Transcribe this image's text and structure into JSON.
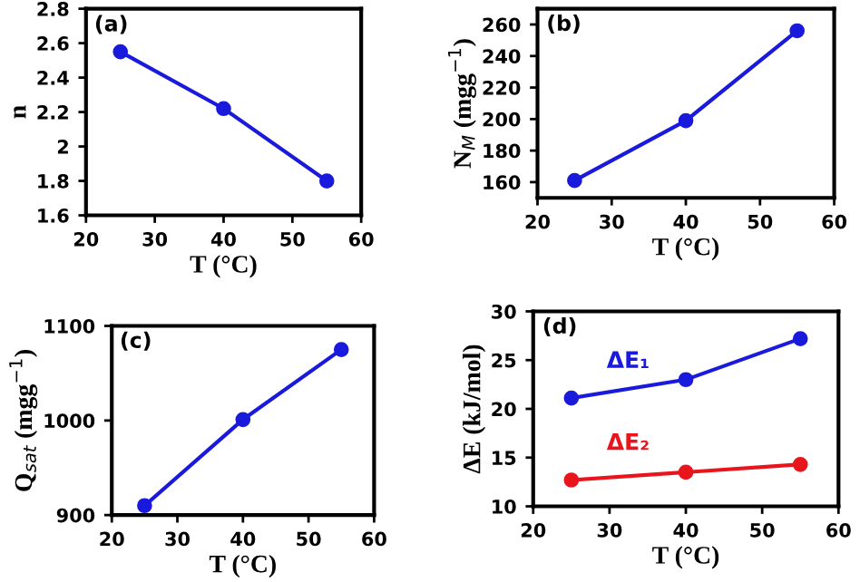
{
  "chart_data": [
    {
      "type": "line",
      "xlabel": "T (°C)",
      "ylabel": "n",
      "annotations": [
        "(a)"
      ],
      "x": [
        25,
        40,
        55
      ],
      "marker": "circle",
      "line_style": "solid",
      "grid": false,
      "legend": false,
      "series": [
        {
          "color": "#1a1adc",
          "values": [
            2.55,
            2.22,
            1.8
          ]
        }
      ],
      "xlim": [
        20,
        60
      ],
      "xticks": [
        20,
        30,
        40,
        50,
        60
      ],
      "ylim": [
        1.6,
        2.8
      ],
      "yticks": [
        1.6,
        1.8,
        {
          "value": 2.0,
          "label": "2"
        },
        2.2,
        2.4,
        2.6,
        2.8
      ]
    },
    {
      "type": "line",
      "xlabel": "T (°C)",
      "ylabel": "N$_{M}$ (mgg$^{−1}$)",
      "annotations": [
        "(b)"
      ],
      "x": [
        25,
        40,
        55
      ],
      "marker": "circle",
      "line_style": "solid",
      "grid": false,
      "legend": false,
      "series": [
        {
          "color": "#1a1adc",
          "values": [
            161,
            199,
            256
          ]
        }
      ],
      "xlim": [
        20,
        60
      ],
      "xticks": [
        20,
        30,
        40,
        50,
        60
      ],
      "ylim": [
        150,
        270
      ],
      "yticks": [
        160,
        180,
        200,
        220,
        240,
        260
      ]
    },
    {
      "type": "line",
      "xlabel": "T (°C)",
      "ylabel": "Q$_{sat}$ (mgg$^{−1}$)",
      "annotations": [
        "(c)"
      ],
      "x": [
        25,
        40,
        55
      ],
      "marker": "circle",
      "line_style": "solid",
      "grid": false,
      "legend": false,
      "series": [
        {
          "color": "#1a1adc",
          "values": [
            910,
            1001,
            1075
          ]
        }
      ],
      "xlim": [
        20,
        60
      ],
      "xticks": [
        20,
        30,
        40,
        50,
        60
      ],
      "ylim": [
        900,
        1100
      ],
      "yticks": [
        900,
        1000,
        1100
      ]
    },
    {
      "type": "line",
      "xlabel": "T (°C)",
      "ylabel": "ΔE (kJ/mol)",
      "annotations": [
        "(d)"
      ],
      "x": [
        25,
        40,
        55
      ],
      "marker": "circle",
      "line_style": "solid",
      "grid": false,
      "legend": false,
      "series": [
        {
          "name": "ΔE₁",
          "color": "#1a1adc",
          "values": [
            21.1,
            23.0,
            27.2
          ]
        },
        {
          "name": "ΔE₂",
          "color": "#e8161c",
          "values": [
            12.7,
            13.5,
            14.3
          ]
        }
      ],
      "xlim": [
        20,
        60
      ],
      "xticks": [
        20,
        30,
        40,
        50,
        60
      ],
      "ylim": [
        10,
        30
      ],
      "yticks": [
        10,
        15,
        20,
        25,
        30
      ]
    }
  ]
}
